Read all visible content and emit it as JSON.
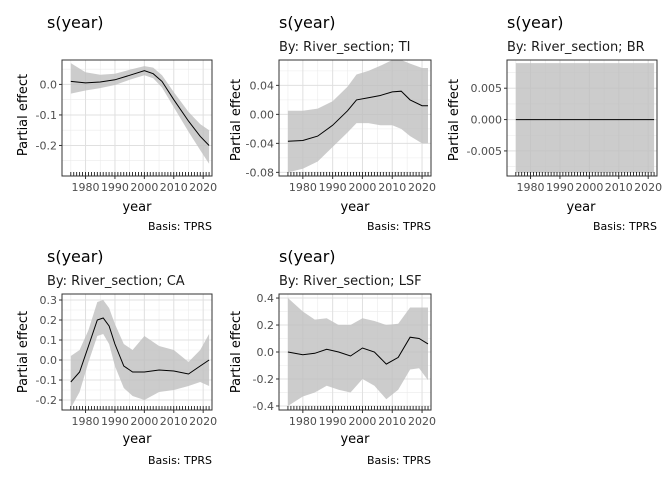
{
  "chart_data": [
    {
      "type": "line",
      "title": "s(year)",
      "subtitle": "",
      "xlabel": "year",
      "ylabel": "Partial effect",
      "caption": "Basis: TPRS",
      "xlim": [
        1972,
        2023
      ],
      "ylim": [
        -0.3,
        0.08
      ],
      "xticks": [
        1980,
        1990,
        2000,
        2010,
        2020
      ],
      "yticks": [
        0.0,
        -0.1,
        -0.2
      ],
      "ytick_labels": [
        "0.0",
        "-0.1",
        "-0.2"
      ],
      "series": [
        {
          "x": [
            1975,
            1980,
            1985,
            1990,
            1995,
            2000,
            2003,
            2006,
            2010,
            2015,
            2019,
            2022
          ],
          "y": [
            0.01,
            0.005,
            0.008,
            0.015,
            0.03,
            0.045,
            0.035,
            0.01,
            -0.05,
            -0.12,
            -0.17,
            -0.2
          ],
          "lower": [
            -0.03,
            -0.02,
            -0.012,
            -0.002,
            0.015,
            0.03,
            0.02,
            -0.01,
            -0.075,
            -0.155,
            -0.215,
            -0.26
          ],
          "upper": [
            0.07,
            0.04,
            0.032,
            0.035,
            0.048,
            0.06,
            0.055,
            0.03,
            -0.025,
            -0.09,
            -0.13,
            -0.15
          ]
        }
      ]
    },
    {
      "type": "line",
      "title": "s(year)",
      "subtitle": "By: River_section; TI",
      "xlabel": "year",
      "ylabel": "Partial effect",
      "caption": "Basis: TPRS",
      "xlim": [
        1972,
        2023
      ],
      "ylim": [
        -0.085,
        0.075
      ],
      "xticks": [
        1980,
        1990,
        2000,
        2010,
        2020
      ],
      "yticks": [
        0.04,
        0.0,
        -0.04,
        -0.08
      ],
      "ytick_labels": [
        "0.04",
        "0.00",
        "-0.04",
        "-0.08"
      ],
      "series": [
        {
          "x": [
            1975,
            1980,
            1985,
            1990,
            1995,
            1998,
            2002,
            2006,
            2010,
            2013,
            2016,
            2020,
            2022
          ],
          "y": [
            -0.037,
            -0.036,
            -0.03,
            -0.015,
            0.005,
            0.02,
            0.023,
            0.026,
            0.031,
            0.032,
            0.02,
            0.012,
            0.012
          ],
          "lower": [
            -0.08,
            -0.075,
            -0.065,
            -0.045,
            -0.025,
            -0.012,
            -0.012,
            -0.015,
            -0.015,
            -0.02,
            -0.03,
            -0.04,
            -0.04
          ],
          "upper": [
            0.005,
            0.005,
            0.008,
            0.018,
            0.038,
            0.055,
            0.06,
            0.067,
            0.075,
            0.075,
            0.07,
            0.064,
            0.064
          ]
        }
      ]
    },
    {
      "type": "line",
      "title": "s(year)",
      "subtitle": "By: River_section; BR",
      "xlabel": "year",
      "ylabel": "Partial effect",
      "caption": "Basis: TPRS",
      "xlim": [
        1972,
        2023
      ],
      "ylim": [
        -0.009,
        0.0095
      ],
      "xticks": [
        1980,
        1990,
        2000,
        2010,
        2020
      ],
      "yticks": [
        0.005,
        0.0,
        -0.005
      ],
      "ytick_labels": [
        "0.005",
        "0.000",
        "-0.005"
      ],
      "series": [
        {
          "x": [
            1975,
            2022
          ],
          "y": [
            0.0,
            0.0
          ],
          "lower": [
            -0.0085,
            -0.0085
          ],
          "upper": [
            0.009,
            0.009
          ]
        }
      ]
    },
    {
      "type": "line",
      "title": "s(year)",
      "subtitle": "By: River_section; CA",
      "xlabel": "year",
      "ylabel": "Partial effect",
      "caption": "Basis: TPRS",
      "xlim": [
        1972,
        2023
      ],
      "ylim": [
        -0.25,
        0.33
      ],
      "xticks": [
        1980,
        1990,
        2000,
        2010,
        2020
      ],
      "yticks": [
        0.3,
        0.2,
        0.1,
        0.0,
        -0.1,
        -0.2
      ],
      "ytick_labels": [
        "0.3",
        "0.2",
        "0.1",
        "0.0",
        "-0.1",
        "-0.2"
      ],
      "series": [
        {
          "x": [
            1975,
            1978,
            1981,
            1984,
            1986,
            1988,
            1990,
            1993,
            1996,
            2000,
            2005,
            2010,
            2015,
            2019,
            2022
          ],
          "y": [
            -0.11,
            -0.06,
            0.07,
            0.2,
            0.21,
            0.17,
            0.08,
            -0.03,
            -0.06,
            -0.06,
            -0.05,
            -0.055,
            -0.07,
            -0.03,
            0.0
          ],
          "lower": [
            -0.24,
            -0.16,
            -0.01,
            0.12,
            0.13,
            0.08,
            -0.03,
            -0.14,
            -0.18,
            -0.2,
            -0.16,
            -0.15,
            -0.13,
            -0.11,
            -0.13
          ],
          "upper": [
            0.02,
            0.05,
            0.15,
            0.29,
            0.3,
            0.26,
            0.18,
            0.08,
            0.05,
            0.12,
            0.07,
            0.05,
            -0.01,
            0.05,
            0.13
          ]
        }
      ]
    },
    {
      "type": "line",
      "title": "s(year)",
      "subtitle": "By: River_section; LSF",
      "xlabel": "year",
      "ylabel": "Partial effect",
      "caption": "Basis: TPRS",
      "xlim": [
        1972,
        2023
      ],
      "ylim": [
        -0.43,
        0.43
      ],
      "xticks": [
        1980,
        1990,
        2000,
        2010,
        2020
      ],
      "yticks": [
        0.4,
        0.2,
        0.0,
        -0.2,
        -0.4
      ],
      "ytick_labels": [
        "0.4",
        "0.2",
        "0.0",
        "-0.2",
        "-0.4"
      ],
      "series": [
        {
          "x": [
            1975,
            1980,
            1984,
            1988,
            1992,
            1996,
            2000,
            2004,
            2008,
            2012,
            2016,
            2019,
            2022
          ],
          "y": [
            0.0,
            -0.02,
            -0.01,
            0.02,
            0.0,
            -0.03,
            0.03,
            0.0,
            -0.09,
            -0.04,
            0.11,
            0.1,
            0.06
          ],
          "lower": [
            -0.4,
            -0.33,
            -0.3,
            -0.25,
            -0.28,
            -0.3,
            -0.2,
            -0.25,
            -0.35,
            -0.28,
            -0.13,
            -0.12,
            -0.21
          ],
          "upper": [
            0.4,
            0.3,
            0.24,
            0.25,
            0.2,
            0.2,
            0.25,
            0.23,
            0.2,
            0.21,
            0.33,
            0.33,
            0.33
          ]
        }
      ]
    }
  ]
}
